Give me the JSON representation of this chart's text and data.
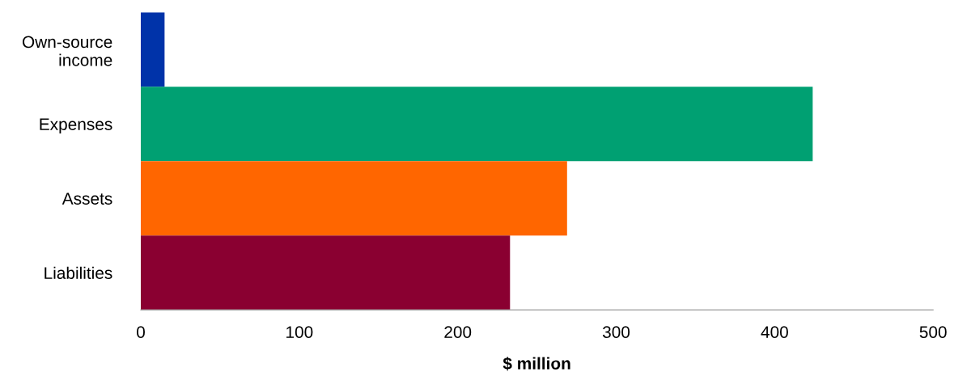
{
  "chart_data": {
    "type": "bar",
    "orientation": "horizontal",
    "categories": [
      "Own-source\nincome",
      "Expenses",
      "Assets",
      "Liabilities"
    ],
    "values": [
      15,
      424,
      269,
      233
    ],
    "colors": [
      "#0033a9",
      "#00a072",
      "#ff6600",
      "#8a0031"
    ],
    "xlabel": "$ million",
    "xlim": [
      0,
      500
    ],
    "xticks": [
      0,
      100,
      200,
      300,
      400,
      500
    ],
    "grid": false,
    "legend": false
  }
}
